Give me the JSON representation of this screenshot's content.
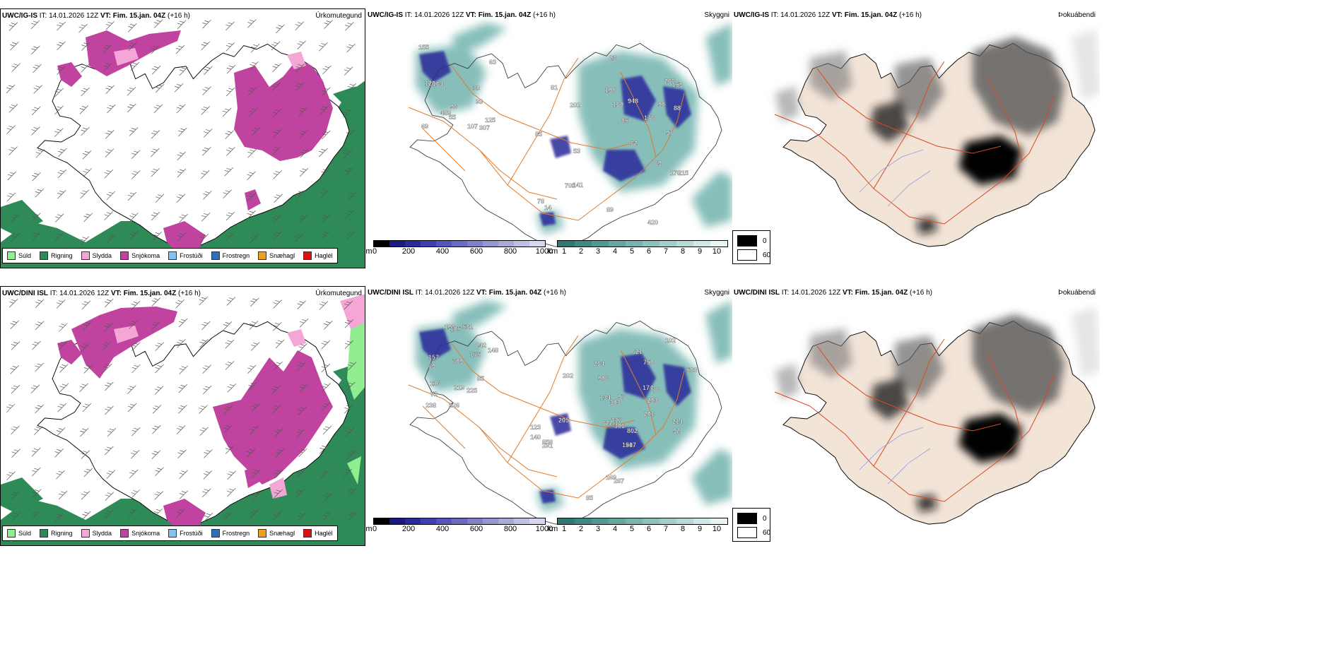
{
  "rows": [
    {
      "model": "UWC/IG-IS",
      "it_label": "IT:",
      "it_value": "14.01.2026 12Z",
      "vt_label": "VT:",
      "vt_value": "Fim. 15.jan. 04Z",
      "lead": "(+16 h)",
      "panels": [
        "Úrkomutegund",
        "Skyggni",
        "Þokuábendi"
      ]
    },
    {
      "model": "UWC/DINI ISL",
      "it_label": "IT:",
      "it_value": "14.01.2026 12Z",
      "vt_label": "VT:",
      "vt_value": "Fim. 15.jan. 04Z",
      "lead": "(+16 h)",
      "panels": [
        "Úrkomutegund",
        "Skyggni",
        "Þokuábendi"
      ]
    }
  ],
  "precip_legend": [
    {
      "label": "Súld",
      "color": "#90ee90"
    },
    {
      "label": "Rigning",
      "color": "#2e8b57"
    },
    {
      "label": "Slydda",
      "color": "#f4a6d7"
    },
    {
      "label": "Snjókoma",
      "color": "#c0449f"
    },
    {
      "label": "Frostúði",
      "color": "#87c1f0"
    },
    {
      "label": "Frostregn",
      "color": "#2f6fc0"
    },
    {
      "label": "Snæhagl",
      "color": "#f0a020"
    },
    {
      "label": "Haglél",
      "color": "#e01010"
    }
  ],
  "colorbar_m": {
    "unit": "m",
    "ticks": [
      "0",
      "200",
      "400",
      "600",
      "800",
      "1000"
    ],
    "colors": [
      "#000000",
      "#1a1a80",
      "#2a2a9a",
      "#3f3fb0",
      "#5555bb",
      "#6a6ac2",
      "#8080c8",
      "#9595cf",
      "#aaaad8",
      "#c0c0e2",
      "#d6d6ee"
    ]
  },
  "colorbar_km": {
    "unit": "km",
    "ticks": [
      "1",
      "2",
      "3",
      "4",
      "5",
      "6",
      "7",
      "8",
      "9",
      "10"
    ],
    "colors": [
      "#2e7a73",
      "#3e8a83",
      "#519892",
      "#64a6a0",
      "#78b3ae",
      "#8dc1bc",
      "#a3ceca",
      "#b9dbd8",
      "#d0e8e6",
      "#e8f4f3"
    ]
  },
  "fog_legend": [
    {
      "label": "0",
      "color": "#000000"
    },
    {
      "label": "60",
      "color": "#ffffff"
    }
  ],
  "visibility_labels_top": [
    "96",
    "160",
    "81",
    "93",
    "215",
    "202",
    "55",
    "85",
    "141",
    "30",
    "88",
    "198",
    "155",
    "170",
    "53",
    "107",
    "176",
    "97",
    "63",
    "948",
    "420",
    "164",
    "69",
    "705",
    "307",
    "90",
    "89",
    "69",
    "159",
    "78",
    "489",
    "62",
    "14",
    "125",
    "266",
    "85",
    "120",
    "23"
  ],
  "visibility_labels_bottom": [
    "238",
    "102",
    "202",
    "242",
    "201",
    "205",
    "116",
    "117",
    "203",
    "175",
    "134",
    "264",
    "225",
    "174",
    "85",
    "190",
    "92",
    "123",
    "72",
    "207",
    "287",
    "105",
    "621",
    "622",
    "709",
    "802",
    "858",
    "531",
    "750",
    "151",
    "157",
    "306",
    "169",
    "219",
    "214",
    "291",
    "148",
    "76",
    "97",
    "85",
    "583",
    "906",
    "526",
    "303",
    "140",
    "69"
  ]
}
